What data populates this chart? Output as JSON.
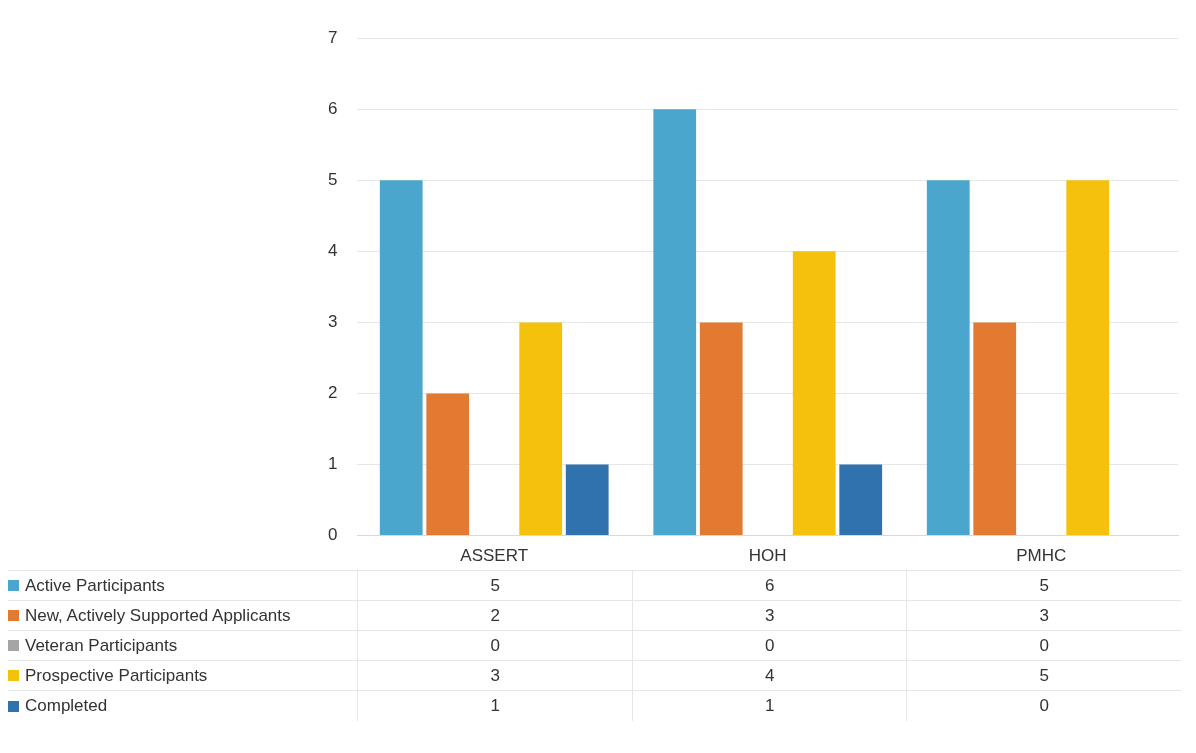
{
  "chart_data": {
    "type": "bar",
    "categories": [
      "ASSERT",
      "HOH",
      "PMHC"
    ],
    "series": [
      {
        "name": "Active Participants",
        "color": "#4aa6cc",
        "values": [
          5,
          6,
          5
        ]
      },
      {
        "name": "New, Actively Supported Applicants",
        "color": "#e27a32",
        "values": [
          2,
          3,
          3
        ]
      },
      {
        "name": "Veteran Participants",
        "color": "#a5a5a5",
        "values": [
          0,
          0,
          0
        ]
      },
      {
        "name": "Prospective Participants",
        "color": "#f4c20d",
        "values": [
          3,
          4,
          5
        ]
      },
      {
        "name": "Completed",
        "color": "#2f72ad",
        "values": [
          1,
          1,
          0
        ]
      }
    ],
    "ylim": [
      0,
      7
    ],
    "yticks": [
      0,
      1,
      2,
      3,
      4,
      5,
      6,
      7
    ],
    "grid": "y",
    "legend": "bottom",
    "data_labels": true
  }
}
